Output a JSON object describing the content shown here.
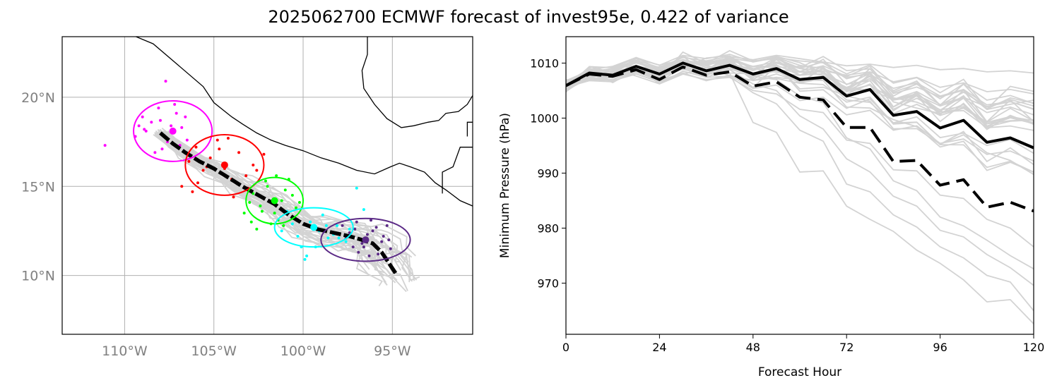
{
  "title": "2025062700 ECMWF forecast of invest95e, 0.422 of variance",
  "chart_data": [
    {
      "type": "scatter",
      "panel": "track-map",
      "xlim": [
        -113.5,
        -90.5
      ],
      "ylim": [
        6.7,
        23.4
      ],
      "xticks": [
        -110,
        -105,
        -100,
        -95
      ],
      "xtick_labels": [
        "110°W",
        "105°W",
        "100°W",
        "95°W"
      ],
      "yticks": [
        10,
        15,
        20
      ],
      "ytick_labels": [
        "10°N",
        "15°N",
        "20°N"
      ],
      "grid": true,
      "ensemble_color": "#d3d3d3",
      "mean_track": {
        "color": "#000000",
        "lon": [
          -108.0,
          -107.3,
          -106.6,
          -105.8,
          -105.0,
          -104.2,
          -103.4,
          -102.5,
          -101.6,
          -100.8,
          -100.0,
          -99.2,
          -98.3,
          -97.4,
          -96.7,
          -96.1,
          -95.6,
          -95.2,
          -94.8
        ],
        "lat": [
          18.0,
          17.4,
          16.9,
          16.4,
          16.0,
          15.5,
          15.0,
          14.5,
          14.0,
          13.4,
          12.9,
          12.6,
          12.4,
          12.2,
          12.0,
          11.8,
          11.3,
          10.7,
          10.1
        ]
      },
      "uncertainty_ellipses": [
        {
          "color": "#ff00ff",
          "center": [
            -107.3,
            18.1
          ],
          "semi_axes_deg": [
            2.2,
            1.7
          ]
        },
        {
          "color": "#ff0000",
          "center": [
            -104.4,
            16.2
          ],
          "semi_axes_deg": [
            2.2,
            1.7
          ]
        },
        {
          "color": "#00ff00",
          "center": [
            -101.6,
            14.2
          ],
          "semi_axes_deg": [
            1.6,
            1.3
          ]
        },
        {
          "color": "#00ffff",
          "center": [
            -99.4,
            12.7
          ],
          "semi_axes_deg": [
            2.2,
            1.1
          ]
        },
        {
          "color": "#5b2a86",
          "center": [
            -96.5,
            12.0
          ],
          "semi_axes_deg": [
            2.5,
            1.2
          ]
        }
      ],
      "member_positions": [
        {
          "color": "#ff00ff",
          "lon": [
            -111.1,
            -109.4,
            -109.0,
            -108.8,
            -108.5,
            -108.1,
            -107.7,
            -107.4,
            -107.1,
            -106.8,
            -106.5,
            -108.9,
            -107.9,
            -107.2,
            -106.6,
            -108.3,
            -107.6,
            -106.9,
            -109.2,
            -108.0
          ],
          "lat": [
            17.3,
            17.8,
            18.9,
            18.1,
            18.6,
            19.4,
            20.9,
            18.4,
            19.1,
            18.3,
            17.6,
            18.2,
            17.1,
            19.6,
            18.9,
            16.9,
            17.5,
            17.3,
            18.4,
            18.7
          ]
        },
        {
          "color": "#ff0000",
          "lon": [
            -106.4,
            -106.0,
            -105.6,
            -105.2,
            -104.8,
            -104.4,
            -104.0,
            -103.6,
            -103.2,
            -102.8,
            -106.8,
            -105.9,
            -104.7,
            -103.9,
            -102.6,
            -105.4,
            -104.2,
            -103.1,
            -106.2,
            -102.2
          ],
          "lat": [
            16.4,
            17.2,
            15.9,
            16.6,
            17.6,
            16.0,
            15.4,
            16.9,
            15.6,
            16.2,
            15.0,
            15.2,
            17.1,
            14.4,
            15.9,
            16.1,
            17.7,
            14.9,
            14.7,
            16.8
          ]
        },
        {
          "color": "#00ff00",
          "lon": [
            -103.3,
            -102.8,
            -102.4,
            -102.0,
            -101.6,
            -101.2,
            -100.8,
            -100.4,
            -102.6,
            -101.8,
            -101.0,
            -103.0,
            -102.1,
            -101.4,
            -100.6,
            -102.9,
            -101.5,
            -100.2,
            -102.3,
            -101.1
          ],
          "lat": [
            13.5,
            14.6,
            13.9,
            15.0,
            13.5,
            14.2,
            15.4,
            13.8,
            12.6,
            12.9,
            14.8,
            14.1,
            15.3,
            13.1,
            14.5,
            13.0,
            15.6,
            14.1,
            13.6,
            12.8
          ]
        },
        {
          "color": "#00ffff",
          "lon": [
            -101.2,
            -100.6,
            -100.1,
            -99.6,
            -99.1,
            -98.6,
            -98.1,
            -97.6,
            -97.0,
            -100.9,
            -99.8,
            -98.9,
            -98.3,
            -97.4,
            -100.3,
            -99.3,
            -98.0,
            -96.6,
            -99.9,
            -98.7
          ],
          "lat": [
            12.5,
            12.9,
            11.6,
            13.0,
            12.5,
            12.1,
            12.8,
            11.9,
            14.9,
            13.6,
            11.1,
            13.4,
            12.3,
            12.6,
            12.2,
            11.6,
            12.1,
            13.7,
            10.9,
            12.8
          ]
        },
        {
          "color": "#5b2a86",
          "lon": [
            -97.6,
            -97.1,
            -96.6,
            -96.1,
            -95.6,
            -95.1,
            -97.8,
            -97.2,
            -96.4,
            -95.8,
            -95.3,
            -96.9,
            -96.2,
            -95.5,
            -97.4,
            -96.7,
            -95.9,
            -95.2,
            -96.3,
            -97.0
          ],
          "lat": [
            12.1,
            12.6,
            11.6,
            12.5,
            11.9,
            11.5,
            12.8,
            11.6,
            12.3,
            11.2,
            12.8,
            11.3,
            13.1,
            12.2,
            12.4,
            11.8,
            12.7,
            12.0,
            11.1,
            13.0
          ]
        }
      ],
      "coastline": [
        [
          -109.6,
          23.5
        ],
        [
          -108.4,
          23.0
        ],
        [
          -107.0,
          21.8
        ],
        [
          -105.6,
          20.6
        ],
        [
          -105.0,
          19.7
        ],
        [
          -104.0,
          18.9
        ],
        [
          -103.4,
          18.5
        ],
        [
          -102.6,
          18.0
        ],
        [
          -101.8,
          17.6
        ],
        [
          -101.0,
          17.3
        ],
        [
          -100.0,
          17.0
        ],
        [
          -99.0,
          16.6
        ],
        [
          -98.0,
          16.3
        ],
        [
          -97.0,
          15.9
        ],
        [
          -96.0,
          15.7
        ],
        [
          -95.1,
          16.1
        ],
        [
          -94.6,
          16.3
        ],
        [
          -94.0,
          16.1
        ],
        [
          -93.2,
          15.8
        ],
        [
          -92.6,
          15.2
        ],
        [
          -92.0,
          14.8
        ],
        [
          -91.2,
          14.2
        ],
        [
          -90.5,
          13.9
        ]
      ],
      "inland_coast": [
        [
          -96.4,
          23.5
        ],
        [
          -96.4,
          22.4
        ],
        [
          -96.7,
          21.5
        ],
        [
          -96.6,
          20.5
        ],
        [
          -96.0,
          19.6
        ],
        [
          -95.3,
          18.8
        ],
        [
          -94.5,
          18.3
        ],
        [
          -93.8,
          18.4
        ],
        [
          -93.0,
          18.6
        ],
        [
          -92.4,
          18.7
        ],
        [
          -92.0,
          19.1
        ],
        [
          -91.3,
          19.2
        ],
        [
          -90.8,
          19.6
        ],
        [
          -90.5,
          20.1
        ]
      ],
      "borders": [
        [
          [
            -92.2,
            14.6
          ],
          [
            -92.2,
            15.8
          ],
          [
            -91.6,
            16.1
          ],
          [
            -91.2,
            17.2
          ],
          [
            -90.5,
            17.2
          ]
        ],
        [
          [
            -90.8,
            17.8
          ],
          [
            -90.8,
            18.6
          ],
          [
            -90.5,
            18.6
          ]
        ]
      ]
    },
    {
      "type": "line",
      "panel": "pressure",
      "xlabel": "Forecast Hour",
      "ylabel": "Minimum Pressure (hPa)",
      "xlim": [
        0,
        120
      ],
      "ylim": [
        960.7,
        1014.8
      ],
      "xticks": [
        0,
        24,
        48,
        72,
        96,
        120
      ],
      "yticks": [
        970,
        980,
        990,
        1000,
        1010
      ],
      "ensemble_color": "#d3d3d3",
      "x": [
        0,
        6,
        12,
        18,
        24,
        30,
        36,
        42,
        48,
        54,
        60,
        66,
        72,
        78,
        84,
        90,
        96,
        102,
        108,
        114,
        120
      ],
      "series": [
        {
          "style": "solid",
          "color": "#000000",
          "values": [
            1005.9,
            1008.2,
            1007.8,
            1009.4,
            1008.0,
            1010.0,
            1008.6,
            1009.6,
            1008.0,
            1009.0,
            1007.0,
            1007.4,
            1004.0,
            1005.2,
            1000.5,
            1001.2,
            998.2,
            999.6,
            995.6,
            996.4,
            994.6
          ]
        },
        {
          "style": "dashed",
          "color": "#000000",
          "values": [
            1005.9,
            1008.0,
            1007.6,
            1008.8,
            1007.0,
            1009.3,
            1007.8,
            1008.4,
            1005.8,
            1006.6,
            1003.8,
            1003.3,
            998.3,
            998.3,
            992.1,
            992.3,
            987.8,
            988.8,
            983.8,
            984.7,
            983.1
          ]
        }
      ],
      "ensemble_members": [
        [
          1006.2,
          1008.4,
          1009.0,
          1010.5,
          1009.2,
          1011.0,
          1010.4,
          1011.2,
          1010.6,
          1011.4,
          1010.8,
          1010.2,
          1009.5,
          1009.8,
          1009.2,
          1009.6,
          1008.8,
          1009.0,
          1008.4,
          1008.6,
          1008.2
        ],
        [
          1006.0,
          1007.6,
          1008.6,
          1010.0,
          1008.8,
          1010.4,
          1009.8,
          1010.6,
          1009.4,
          1010.2,
          1009.0,
          1008.6,
          1007.8,
          1008.4,
          1006.6,
          1007.4,
          1005.6,
          1006.4,
          1004.8,
          1005.2,
          1004.4
        ],
        [
          1005.8,
          1007.2,
          1007.4,
          1009.0,
          1007.6,
          1009.4,
          1008.4,
          1009.2,
          1007.6,
          1008.6,
          1006.4,
          1007.2,
          1005.0,
          1006.0,
          1003.4,
          1004.2,
          1002.2,
          1003.6,
          1001.0,
          1002.0,
          1000.6
        ],
        [
          1005.6,
          1006.8,
          1006.6,
          1008.4,
          1006.8,
          1008.2,
          1006.8,
          1007.8,
          1005.4,
          1006.0,
          1003.2,
          1003.8,
          1000.6,
          1001.4,
          997.8,
          998.6,
          995.4,
          996.2,
          993.4,
          994.0,
          992.2
        ],
        [
          1006.1,
          1008.0,
          1008.2,
          1009.6,
          1008.4,
          1009.8,
          1008.6,
          1008.8,
          1006.2,
          1005.0,
          1000.4,
          998.0,
          992.6,
          990.2,
          985.8,
          984.0,
          979.6,
          978.4,
          975.2,
          972.8,
          969.6
        ],
        [
          1006.0,
          1007.8,
          1007.6,
          1009.2,
          1008.0,
          1009.6,
          1008.0,
          1008.2,
          999.2,
          997.4,
          990.2,
          990.4,
          984.0,
          981.6,
          979.4,
          976.0,
          973.6,
          970.6,
          966.6,
          967.0,
          962.6
        ],
        [
          1005.9,
          1007.4,
          1007.0,
          1008.6,
          1007.4,
          1009.0,
          1007.4,
          1007.6,
          1004.6,
          1002.6,
          997.8,
          995.8,
          988.0,
          986.6,
          982.4,
          980.2,
          976.6,
          974.6,
          971.4,
          970.2,
          965.0
        ],
        [
          1006.3,
          1008.6,
          1008.8,
          1010.2,
          1009.0,
          1010.6,
          1009.2,
          1009.4,
          1007.6,
          1007.0,
          1004.0,
          1002.8,
          996.4,
          994.4,
          988.6,
          986.8,
          982.0,
          980.4,
          977.8,
          975.0,
          972.6
        ],
        [
          1005.7,
          1007.0,
          1006.8,
          1008.0,
          1006.6,
          1008.0,
          1007.0,
          1007.4,
          1005.0,
          1004.4,
          1001.6,
          1001.0,
          996.0,
          995.4,
          990.6,
          990.4,
          986.0,
          985.4,
          981.6,
          980.0,
          976.6
        ],
        [
          1006.4,
          1008.8,
          1009.4,
          1011.0,
          1009.6,
          1011.4,
          1010.8,
          1011.6,
          1010.2,
          1011.0,
          1009.6,
          1009.0,
          1007.4,
          1008.0,
          1005.4,
          1006.4,
          1004.0,
          1005.2,
          1002.4,
          1003.0,
          1001.6
        ]
      ]
    }
  ]
}
